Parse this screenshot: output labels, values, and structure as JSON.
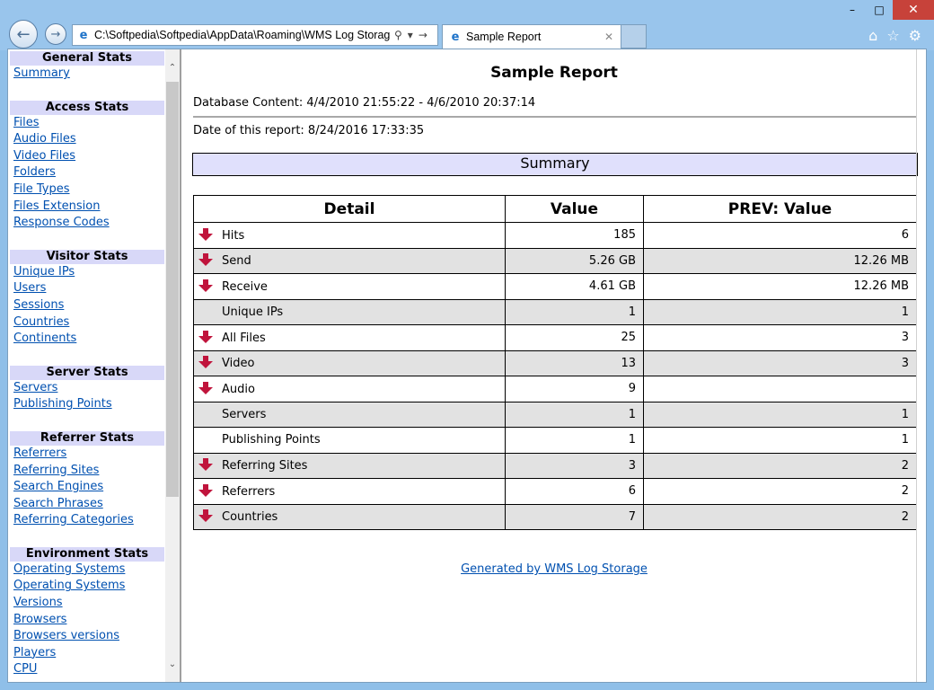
{
  "browser": {
    "address": "C:\\Softpedia\\Softpedia\\AppData\\Roaming\\WMS Log Storage\\",
    "tab_title": "Sample Report"
  },
  "sidebar": {
    "sections": [
      {
        "title": "General Stats",
        "links": [
          "Summary"
        ]
      },
      {
        "title": "Access Stats",
        "links": [
          "Files",
          "Audio Files",
          "Video Files",
          "Folders",
          "File Types",
          "Files Extension",
          "Response Codes"
        ]
      },
      {
        "title": "Visitor Stats",
        "links": [
          "Unique IPs",
          "Users",
          "Sessions",
          "Countries",
          "Continents"
        ]
      },
      {
        "title": "Server Stats",
        "links": [
          "Servers",
          "Publishing Points"
        ]
      },
      {
        "title": "Referrer Stats",
        "links": [
          "Referrers",
          "Referring Sites",
          "Search Engines",
          "Search Phrases",
          "Referring Categories"
        ]
      },
      {
        "title": "Environment Stats",
        "links": [
          "Operating Systems",
          "Operating Systems Versions",
          "Browsers",
          "Browsers versions",
          "Players",
          "CPU"
        ]
      }
    ]
  },
  "report": {
    "title": "Sample Report",
    "db_content": "Database Content: 4/4/2010 21:55:22 - 4/6/2010 20:37:14",
    "date": "Date of this report: 8/24/2016 17:33:35",
    "section_title": "Summary",
    "columns": [
      "Detail",
      "Value",
      "PREV: Value"
    ],
    "rows": [
      {
        "detail": "Hits",
        "value": "185",
        "prev": "6",
        "arrow": "down"
      },
      {
        "detail": "Send",
        "value": "5.26 GB",
        "prev": "12.26 MB",
        "arrow": "down"
      },
      {
        "detail": "Receive",
        "value": "4.61 GB",
        "prev": "12.26 MB",
        "arrow": "down"
      },
      {
        "detail": "Unique IPs",
        "value": "1",
        "prev": "1",
        "arrow": "none"
      },
      {
        "detail": "All Files",
        "value": "25",
        "prev": "3",
        "arrow": "down"
      },
      {
        "detail": "Video",
        "value": "13",
        "prev": "3",
        "arrow": "down"
      },
      {
        "detail": "Audio",
        "value": "9",
        "prev": "",
        "arrow": "down"
      },
      {
        "detail": "Servers",
        "value": "1",
        "prev": "1",
        "arrow": "none"
      },
      {
        "detail": "Publishing Points",
        "value": "1",
        "prev": "1",
        "arrow": "none"
      },
      {
        "detail": "Referring Sites",
        "value": "3",
        "prev": "2",
        "arrow": "down"
      },
      {
        "detail": "Referrers",
        "value": "6",
        "prev": "2",
        "arrow": "down"
      },
      {
        "detail": "Countries",
        "value": "7",
        "prev": "2",
        "arrow": "down"
      }
    ],
    "footer_link": "Generated by WMS Log Storage"
  },
  "colors": {
    "arrow": "#c0143c",
    "header_bg": "#d8d8f8",
    "summary_bg": "#e0e0fc",
    "link": "#0050b0"
  },
  "icons": [
    "back-arrow-icon",
    "forward-arrow-icon",
    "ie-logo-icon",
    "search-icon",
    "refresh-icon",
    "home-icon",
    "star-icon",
    "gear-icon",
    "down-arrow-icon"
  ]
}
